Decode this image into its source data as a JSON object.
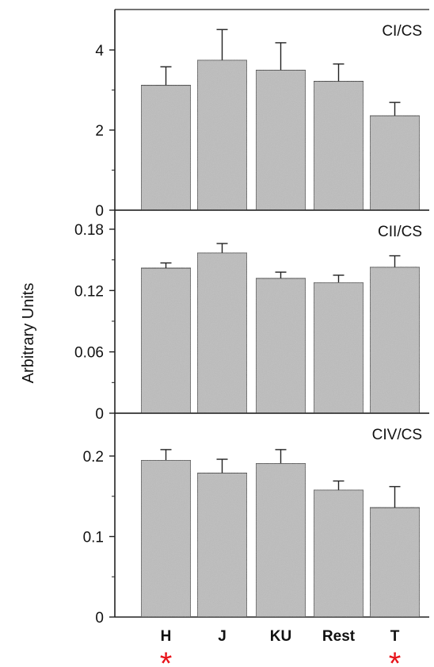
{
  "chart_data": {
    "type": "bar",
    "ylabel": "Arbitrary Units",
    "categories": [
      "H",
      "J",
      "KU",
      "Rest",
      "T"
    ],
    "markers": [
      {
        "category": "H",
        "symbol": "*",
        "color": "#e8141b"
      },
      {
        "category": "T",
        "symbol": "*",
        "color": "#e8141b"
      }
    ],
    "bar_color": "#bdbdbd",
    "panels": [
      {
        "label": "CI/CS",
        "ylim": [
          0,
          5
        ],
        "ticks": [
          0,
          2,
          4
        ],
        "tick_labels": [
          "0",
          "2",
          "4"
        ],
        "values": [
          3.12,
          3.75,
          3.5,
          3.22,
          2.36
        ],
        "errors": [
          0.46,
          0.76,
          0.68,
          0.43,
          0.33
        ]
      },
      {
        "label": "CII/CS",
        "ylim": [
          0,
          0.18
        ],
        "ticks": [
          0,
          0.06,
          0.12,
          0.18
        ],
        "tick_labels": [
          "0",
          "0.06",
          "0.12",
          "0.18"
        ],
        "values": [
          0.142,
          0.157,
          0.132,
          0.128,
          0.143
        ],
        "errors": [
          0.005,
          0.009,
          0.006,
          0.007,
          0.011
        ]
      },
      {
        "label": "CIV/CS",
        "ylim": [
          0,
          0.24
        ],
        "ticks": [
          0,
          0.1,
          0.2
        ],
        "tick_labels": [
          "0",
          "0.1",
          "0.2"
        ],
        "values": [
          0.195,
          0.179,
          0.191,
          0.158,
          0.136
        ],
        "errors": [
          0.013,
          0.017,
          0.017,
          0.011,
          0.026
        ]
      }
    ]
  }
}
